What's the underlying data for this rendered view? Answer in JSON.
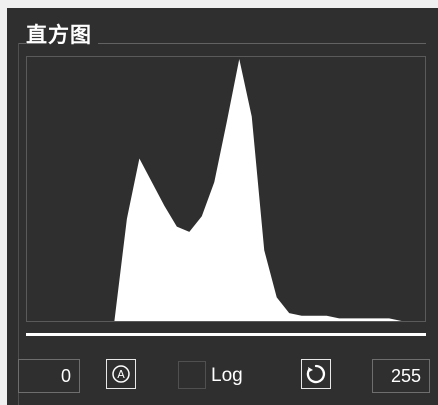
{
  "panel": {
    "title": "直方图"
  },
  "controls": {
    "min_value": "0",
    "max_value": "255",
    "log_label": "Log",
    "auto_icon": "auto-contrast-icon",
    "reset_icon": "refresh-icon"
  },
  "colors": {
    "background": "#2f2f2f",
    "histogram_fill": "#ffffff",
    "border": "#6e6e6e"
  },
  "chart_data": {
    "type": "area",
    "x": [
      0,
      8,
      16,
      24,
      32,
      40,
      48,
      56,
      64,
      72,
      80,
      88,
      96,
      104,
      112,
      120,
      128,
      136,
      144,
      152,
      160,
      168,
      176,
      184,
      192,
      200,
      208,
      216,
      224,
      232,
      240,
      248,
      255
    ],
    "values": [
      0,
      0,
      0,
      0,
      0,
      0,
      0,
      0,
      0.39,
      0.62,
      0.53,
      0.44,
      0.36,
      0.34,
      0.4,
      0.53,
      0.76,
      1.0,
      0.78,
      0.27,
      0.09,
      0.03,
      0.02,
      0.02,
      0.02,
      0.01,
      0.01,
      0.01,
      0.01,
      0.01,
      0.0,
      0.0,
      0.0
    ],
    "title": "直方图",
    "xlabel": "",
    "ylabel": "",
    "xlim": [
      0,
      255
    ],
    "ylim": [
      0,
      1
    ]
  }
}
